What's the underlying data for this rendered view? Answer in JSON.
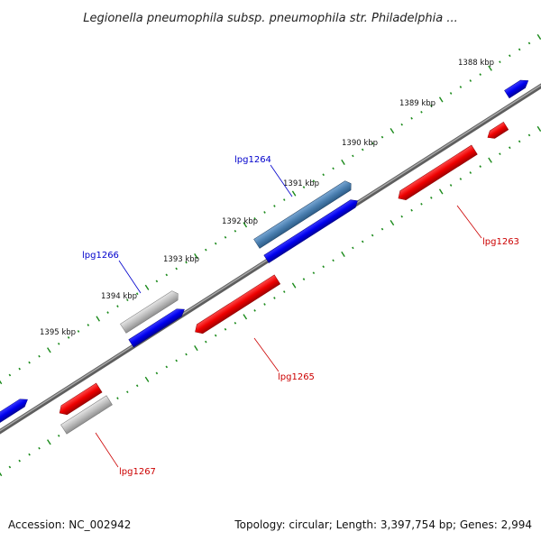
{
  "title": "Legionella pneumophila subsp. pneumophila str. Philadelphia ...",
  "footer": {
    "accession": "Accession: NC_002942",
    "summary": "Topology: circular; Length: 3,397,754 bp; Genes: 2,994"
  },
  "scale_labels": [
    "1388 kbp",
    "1389 kbp",
    "1390 kbp",
    "1391 kbp",
    "1392 kbp",
    "1393 kbp",
    "1394 kbp",
    "1395 kbp"
  ],
  "gene_labels": [
    {
      "name": "lpg1263",
      "color": "#cc0000"
    },
    {
      "name": "lpg1264",
      "color": "#0000cc"
    },
    {
      "name": "lpg1265",
      "color": "#cc0000"
    },
    {
      "name": "lpg1266",
      "color": "#0000cc"
    },
    {
      "name": "lpg1267",
      "color": "#cc0000"
    }
  ],
  "colors": {
    "forward": "#0000ee",
    "reverse": "#ee0000",
    "selected": "#4a7fb0",
    "pseudo": "#b0b0b0",
    "tick": "#1a8a1a",
    "backbone": "#808080"
  }
}
